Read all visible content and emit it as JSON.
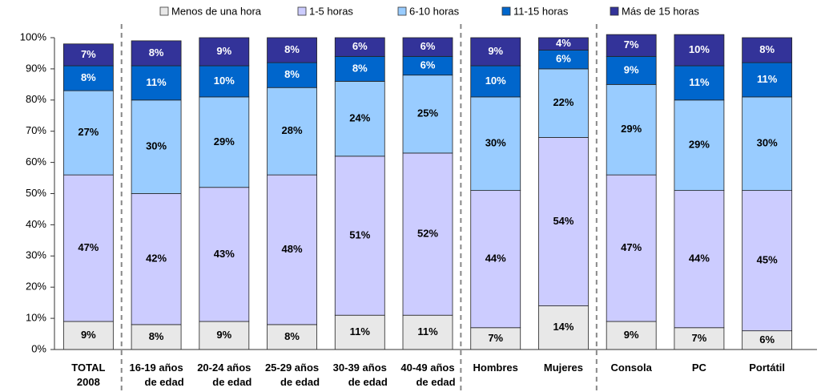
{
  "chart_data": {
    "type": "stacked_bar",
    "categories": [
      "TOTAL\n2008",
      "16-19 años\nde edad",
      "20-24 años\nde edad",
      "25-29 años\nde edad",
      "30-39 años\nde edad",
      "40-49 años\nde edad",
      "Hombres",
      "Mujeres",
      "Consola",
      "PC",
      "Portátil"
    ],
    "series": [
      {
        "name": "Menos de una hora",
        "color": "#e8e8e8",
        "values": [
          9,
          8,
          9,
          8,
          11,
          11,
          7,
          14,
          9,
          7,
          6
        ],
        "value_labels": [
          "9%",
          "8%",
          "9%",
          "8%",
          "11%",
          "11%",
          "7%",
          "14%",
          "9%",
          "7%",
          "6%"
        ]
      },
      {
        "name": "1-5 horas",
        "color": "#ccccff",
        "values": [
          47,
          42,
          43,
          48,
          51,
          52,
          44,
          54,
          47,
          44,
          45
        ],
        "value_labels": [
          "47%",
          "42%",
          "43%",
          "48%",
          "51%",
          "52%",
          "44%",
          "54%",
          "47%",
          "44%",
          "45%"
        ]
      },
      {
        "name": "6-10 horas",
        "color": "#99ccff",
        "values": [
          27,
          30,
          29,
          28,
          24,
          25,
          30,
          22,
          29,
          29,
          30
        ],
        "value_labels": [
          "27%",
          "30%",
          "29%",
          "28%",
          "24%",
          "25%",
          "30%",
          "22%",
          "29%",
          "29%",
          "30%"
        ]
      },
      {
        "name": "11-15 horas",
        "color": "#0066cc",
        "values": [
          8,
          11,
          10,
          8,
          8,
          6,
          10,
          6,
          9,
          11,
          11
        ],
        "value_labels": [
          "8%",
          "11%",
          "10%",
          "8%",
          "8%",
          "6%",
          "10%",
          "6%",
          "9%",
          "11%",
          "11%"
        ]
      },
      {
        "name": "Más de 15 horas",
        "color": "#333399",
        "values": [
          7,
          8,
          9,
          8,
          6,
          6,
          9,
          4,
          7,
          10,
          8
        ],
        "value_labels": [
          "7%",
          "8%",
          "9%",
          "8%",
          "6%",
          "6%",
          "9%",
          "4%",
          "7%",
          "10%",
          "8%"
        ]
      }
    ],
    "ylim": [
      0,
      100
    ],
    "yticks": [
      {
        "value": 0,
        "label": "0%"
      },
      {
        "value": 10,
        "label": "10%"
      },
      {
        "value": 20,
        "label": "20%"
      },
      {
        "value": 30,
        "label": "30%"
      },
      {
        "value": 40,
        "label": "40%"
      },
      {
        "value": 50,
        "label": "50%"
      },
      {
        "value": 60,
        "label": "60%"
      },
      {
        "value": 70,
        "label": "70%"
      },
      {
        "value": 80,
        "label": "80%"
      },
      {
        "value": 90,
        "label": "90%"
      },
      {
        "value": 100,
        "label": "100%"
      }
    ],
    "legend": "top"
  }
}
